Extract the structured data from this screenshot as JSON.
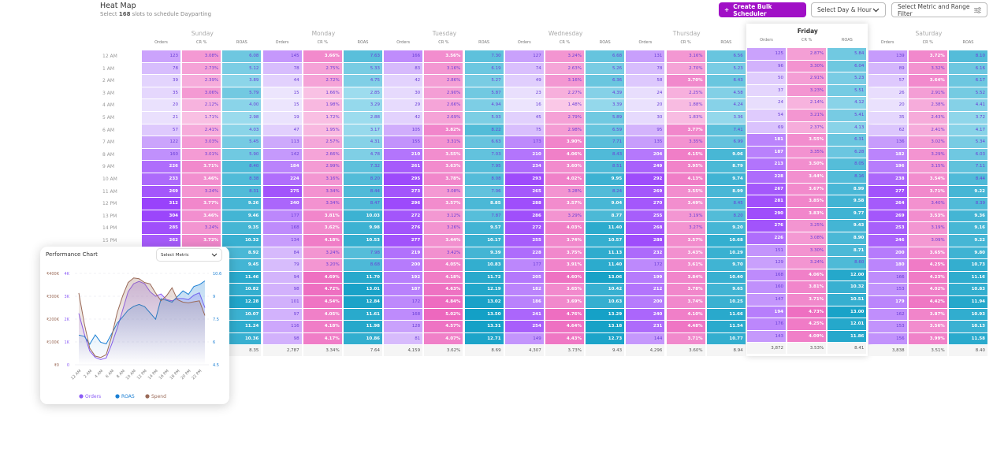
{
  "header": {
    "title": "Heat Map",
    "subtitle_pre": "Select ",
    "subtitle_count": "168",
    "subtitle_post": " slots to schedule Dayparting",
    "create_button": "Create Bulk Scheduler",
    "create_icon": "plus-icon",
    "day_hour_select": "Select Day & Hour",
    "metric_filter": "Select Metric and Range Filter"
  },
  "colors": {
    "orders_light": "#ece5fd",
    "orders_dark": "#9942fb",
    "cr_light": "#fac8e7",
    "cr_dark": "#ed68be",
    "roas_light": "#9ddcee",
    "roas_dark": "#13a0c6",
    "brand": "#a00fc6"
  },
  "metrics": [
    "Orders",
    "CR %",
    "ROAS"
  ],
  "hours": [
    "12 AM",
    "1 AM",
    "2 AM",
    "3 AM",
    "4 AM",
    "5 AM",
    "6 AM",
    "7 AM",
    "8 AM",
    "9 AM",
    "10 AM",
    "11 AM",
    "12 PM",
    "13 PM",
    "14 PM",
    "15 PM"
  ],
  "selected_day": "Friday",
  "days": [
    {
      "name": "Sunday",
      "orders": [
        123,
        78,
        39,
        35,
        20,
        21,
        57,
        122,
        160,
        226,
        233,
        269,
        312,
        304,
        285,
        262,
        null,
        null,
        null,
        null,
        null,
        null,
        null,
        null
      ],
      "cr": [
        "3.08%",
        "2.73%",
        "2.39%",
        "3.06%",
        "2.12%",
        "1.71%",
        "2.41%",
        "3.03%",
        "3.01%",
        "3.71%",
        "3.46%",
        "3.24%",
        "3.77%",
        "3.46%",
        "3.24%",
        "3.72%",
        null,
        null,
        null,
        null,
        null,
        null,
        null,
        null
      ],
      "roas": [
        "6.08",
        "5.12",
        "3.89",
        "5.79",
        "4.00",
        "2.98",
        "4.03",
        "5.45",
        "5.90",
        "8.40",
        "8.38",
        "8.31",
        "9.26",
        "9.46",
        "9.35",
        "10.32",
        "8.92",
        "9.45",
        "11.46",
        "10.82",
        "12.28",
        "10.07",
        "11.24",
        "10.36"
      ],
      "total": {
        "roas": "8.35"
      }
    },
    {
      "name": "Monday",
      "orders": [
        145,
        78,
        44,
        15,
        15,
        19,
        47,
        113,
        142,
        184,
        224,
        275,
        240,
        177,
        168,
        134,
        84,
        79,
        94,
        98,
        101,
        97,
        116,
        98
      ],
      "cr": [
        "3.66%",
        "2.75%",
        "2.72%",
        "1.66%",
        "1.98%",
        "1.72%",
        "1.95%",
        "2.57%",
        "2.66%",
        "2.99%",
        "3.16%",
        "3.34%",
        "3.34%",
        "3.81%",
        "3.62%",
        "4.18%",
        "3.24%",
        "3.20%",
        "4.69%",
        "4.72%",
        "4.54%",
        "4.05%",
        "4.18%",
        "4.17%"
      ],
      "roas": [
        "7.63",
        "5.33",
        "4.75",
        "2.85",
        "3.29",
        "2.88",
        "3.17",
        "4.31",
        "4.78",
        "7.32",
        "8.20",
        "8.44",
        "8.47",
        "10.03",
        "9.98",
        "10.53",
        "7.98",
        "8.68",
        "11.70",
        "13.01",
        "12.84",
        "11.61",
        "11.98",
        "10.86"
      ],
      "total": {
        "orders": "2,787",
        "cr": "3.34%",
        "roas": "7.64"
      }
    },
    {
      "name": "Tuesday",
      "orders": [
        166,
        83,
        42,
        30,
        29,
        42,
        105,
        155,
        210,
        261,
        295,
        273,
        296,
        272,
        276,
        277,
        219,
        200,
        192,
        187,
        172,
        168,
        128,
        81
      ],
      "cr": [
        "3.56%",
        "3.16%",
        "2.86%",
        "2.90%",
        "2.66%",
        "2.69%",
        "3.82%",
        "3.31%",
        "3.55%",
        "3.63%",
        "3.78%",
        "3.08%",
        "3.57%",
        "3.12%",
        "3.26%",
        "3.44%",
        "3.42%",
        "4.05%",
        "4.18%",
        "4.63%",
        "4.84%",
        "5.02%",
        "4.57%",
        "4.07%"
      ],
      "roas": [
        "7.30",
        "6.19",
        "5.27",
        "5.87",
        "4.94",
        "5.03",
        "8.22",
        "6.63",
        "7.03",
        "7.95",
        "8.08",
        "7.06",
        "8.85",
        "7.87",
        "9.57",
        "10.17",
        "9.39",
        "10.83",
        "11.72",
        "12.19",
        "13.02",
        "13.50",
        "13.31",
        "12.71"
      ],
      "total": {
        "orders": "4,159",
        "cr": "3.62%",
        "roas": "8.69"
      }
    },
    {
      "name": "Wednesday",
      "orders": [
        127,
        74,
        49,
        23,
        16,
        45,
        75,
        173,
        210,
        234,
        293,
        265,
        288,
        286,
        272,
        255,
        228,
        177,
        205,
        182,
        186,
        241,
        254,
        149
      ],
      "cr": [
        "3.24%",
        "2.63%",
        "3.16%",
        "2.27%",
        "1.48%",
        "2.79%",
        "2.98%",
        "3.90%",
        "4.06%",
        "3.60%",
        "4.02%",
        "3.28%",
        "3.57%",
        "3.29%",
        "4.03%",
        "3.74%",
        "3.75%",
        "3.91%",
        "4.60%",
        "3.65%",
        "3.69%",
        "4.76%",
        "4.64%",
        "4.43%"
      ],
      "roas": [
        "6.68",
        "5.26",
        "6.36",
        "4.39",
        "3.39",
        "5.89",
        "6.59",
        "7.71",
        "8.43",
        "8.51",
        "9.95",
        "8.24",
        "9.04",
        "8.77",
        "11.40",
        "10.57",
        "11.13",
        "11.40",
        "13.06",
        "10.42",
        "10.63",
        "13.29",
        "13.18",
        "12.73"
      ],
      "total": {
        "orders": "4,307",
        "cr": "3.73%",
        "roas": "9.43"
      }
    },
    {
      "name": "Thursday",
      "orders": [
        131,
        78,
        58,
        24,
        20,
        30,
        95,
        135,
        204,
        249,
        292,
        269,
        270,
        255,
        268,
        288,
        232,
        172,
        199,
        212,
        200,
        240,
        231,
        144
      ],
      "cr": [
        "3.16%",
        "2.70%",
        "3.70%",
        "2.25%",
        "1.88%",
        "1.83%",
        "3.77%",
        "3.35%",
        "4.15%",
        "3.95%",
        "4.13%",
        "3.55%",
        "3.49%",
        "3.19%",
        "3.27%",
        "3.57%",
        "3.43%",
        "3.61%",
        "3.84%",
        "3.78%",
        "3.74%",
        "4.10%",
        "4.48%",
        "3.71%"
      ],
      "roas": [
        "6.56",
        "5.23",
        "6.43",
        "4.58",
        "4.24",
        "3.36",
        "7.41",
        "6.99",
        "9.06",
        "8.79",
        "9.74",
        "8.99",
        "8.45",
        "8.20",
        "9.20",
        "10.68",
        "10.29",
        "9.70",
        "10.40",
        "9.65",
        "10.25",
        "11.66",
        "11.54",
        "10.77"
      ],
      "total": {
        "orders": "4,296",
        "cr": "3.60%",
        "roas": "8.94"
      }
    },
    {
      "name": "Friday",
      "orders": [
        125,
        96,
        50,
        37,
        24,
        54,
        69,
        181,
        187,
        213,
        228,
        267,
        281,
        290,
        276,
        226,
        151,
        129,
        168,
        160,
        147,
        194,
        176,
        143
      ],
      "cr": [
        "2.87%",
        "3.30%",
        "2.91%",
        "3.23%",
        "2.14%",
        "3.21%",
        "2.37%",
        "3.55%",
        "3.35%",
        "3.50%",
        "3.44%",
        "3.67%",
        "3.85%",
        "3.83%",
        "3.25%",
        "3.08%",
        "3.30%",
        "3.24%",
        "4.06%",
        "3.81%",
        "3.71%",
        "4.73%",
        "4.25%",
        "4.09%"
      ],
      "roas": [
        "5.84",
        "6.04",
        "5.23",
        "5.51",
        "4.12",
        "5.41",
        "4.13",
        "6.31",
        "6.28",
        "8.05",
        "8.16",
        "8.99",
        "9.58",
        "9.77",
        "9.43",
        "8.90",
        "8.71",
        "8.60",
        "12.00",
        "10.32",
        "10.51",
        "13.00",
        "12.01",
        "11.86"
      ],
      "total": {
        "orders": "3,872",
        "cr": "3.53%",
        "roas": "8.41"
      }
    },
    {
      "name": "Saturday",
      "orders": [
        139,
        89,
        57,
        26,
        20,
        35,
        62,
        136,
        182,
        196,
        238,
        277,
        264,
        269,
        253,
        246,
        200,
        180,
        166,
        153,
        179,
        162,
        153,
        156
      ],
      "cr": [
        "3.72%",
        "3.32%",
        "3.64%",
        "2.91%",
        "2.38%",
        "2.43%",
        "2.41%",
        "3.02%",
        "3.29%",
        "3.15%",
        "3.54%",
        "3.71%",
        "3.40%",
        "3.53%",
        "3.19%",
        "3.09%",
        "3.65%",
        "4.25%",
        "4.23%",
        "4.02%",
        "4.42%",
        "3.87%",
        "3.56%",
        "3.99%"
      ],
      "roas": [
        "8.10",
        "6.16",
        "6.17",
        "5.52",
        "4.41",
        "3.72",
        "4.17",
        "5.34",
        "6.03",
        "7.11",
        "8.44",
        "9.22",
        "8.39",
        "9.36",
        "9.16",
        "9.22",
        "9.80",
        "10.73",
        "11.16",
        "10.83",
        "11.94",
        "10.93",
        "10.13",
        "11.58"
      ],
      "total": {
        "orders": "3,838",
        "cr": "3.51%",
        "roas": "8.40"
      }
    }
  ],
  "performance_chart": {
    "title": "Performance Chart",
    "select_label": "Select Metric",
    "chart_data": {
      "type": "line",
      "x": [
        "12 AM",
        "1 AM",
        "2 AM",
        "3 AM",
        "4 AM",
        "5 AM",
        "6 AM",
        "7 AM",
        "8 AM",
        "9 AM",
        "10 AM",
        "11 AM",
        "12 PM",
        "13 PM",
        "14 PM",
        "15 PM",
        "16 PM",
        "17 PM",
        "18 PM",
        "19 PM",
        "20 PM",
        "21 PM",
        "22 PM",
        "23 PM"
      ],
      "x_tick_labels": [
        "12 AM",
        "2 AM",
        "4 AM",
        "6 AM",
        "8 AM",
        "10 AM",
        "12 PM",
        "14 PM",
        "16 PM",
        "18 PM",
        "20 PM",
        "22 PM"
      ],
      "series": [
        {
          "name": "Orders",
          "axis": "left-inner",
          "color": "#8b5cf6",
          "values": [
            2250,
            1350,
            600,
            320,
            230,
            300,
            900,
            1600,
            2400,
            3200,
            3550,
            3650,
            3550,
            3200,
            3000,
            3100,
            2850,
            2800,
            2900,
            2900,
            2850,
            3050,
            3150,
            2500
          ]
        },
        {
          "name": "ROAS",
          "axis": "right",
          "color": "#1a7fd4",
          "values": [
            6.48,
            6.4,
            5.87,
            6.5,
            6.0,
            5.9,
            6.57,
            7.27,
            7.7,
            8.15,
            8.4,
            8.53,
            8.38,
            7.97,
            7.54,
            8.9,
            8.8,
            8.68,
            9.06,
            9.43,
            9.2,
            9.73,
            9.85,
            10.1
          ]
        },
        {
          "name": "Spend",
          "axis": "left-outer",
          "color": "#9a6a58",
          "values": [
            314000,
            180000,
            72000,
            38000,
            32000,
            44000,
            124000,
            228000,
            302000,
            360000,
            380000,
            377000,
            360000,
            354000,
            314000,
            280000,
            302000,
            337000,
            285000,
            274000,
            271000,
            276000,
            280000,
            216000
          ]
        }
      ],
      "left_outer_ticks": [
        "₹0",
        "₹100K",
        "₹200K",
        "₹300K",
        "₹400K"
      ],
      "left_inner_ticks": [
        "0",
        "1K",
        "2K",
        "3K",
        "4K"
      ],
      "right_ticks": [
        "4.5",
        "6",
        "7.5",
        "9",
        "10.6"
      ],
      "ylim_orders": [
        0,
        4000
      ],
      "ylim_spend": [
        0,
        400000
      ],
      "ylim_roas": [
        4.5,
        10.6
      ],
      "grid": "dashed horizontal",
      "legend": "bottom"
    }
  }
}
